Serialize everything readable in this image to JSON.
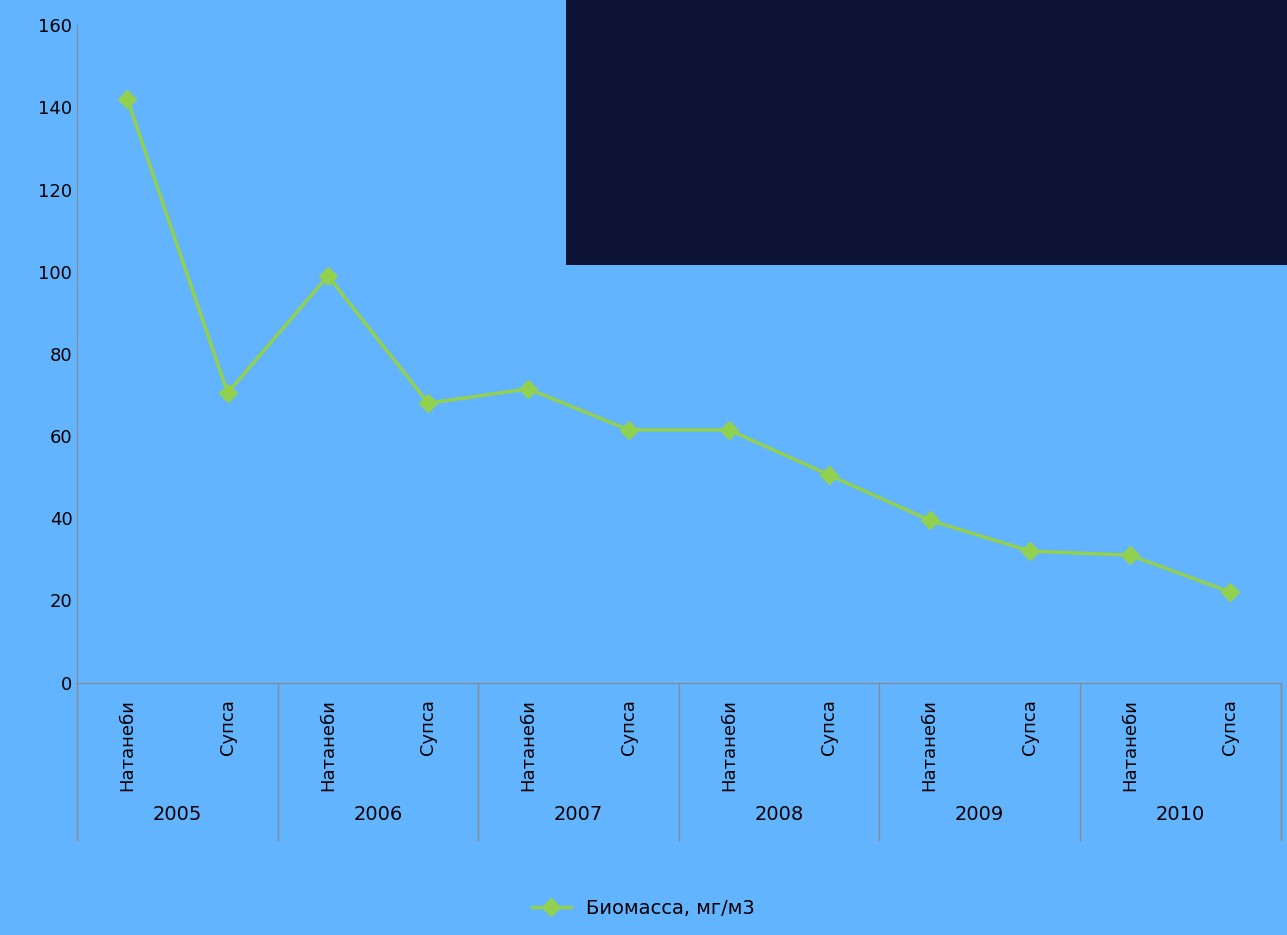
{
  "chart_data": {
    "type": "line",
    "categories": [
      "Натанеби",
      "Супса",
      "Натанеби",
      "Супса",
      "Натанеби",
      "Супса",
      "Натанеби",
      "Супса",
      "Натанеби",
      "Супса",
      "Натанеби",
      "Супса"
    ],
    "years": [
      "2005",
      "2006",
      "2007",
      "2008",
      "2009",
      "2010"
    ],
    "series": [
      {
        "name": "Биомасса, мг/м3",
        "color": "#92d050",
        "marker": "diamond",
        "line_style": "solid",
        "values": [
          142,
          70.5,
          99,
          68,
          71.5,
          61.5,
          61.5,
          50.5,
          39.5,
          32,
          31,
          22
        ]
      }
    ],
    "ylim": [
      0,
      160
    ],
    "yticks": [
      0,
      20,
      40,
      60,
      80,
      100,
      120,
      140,
      160
    ],
    "grid": false,
    "legend": "lower center"
  }
}
